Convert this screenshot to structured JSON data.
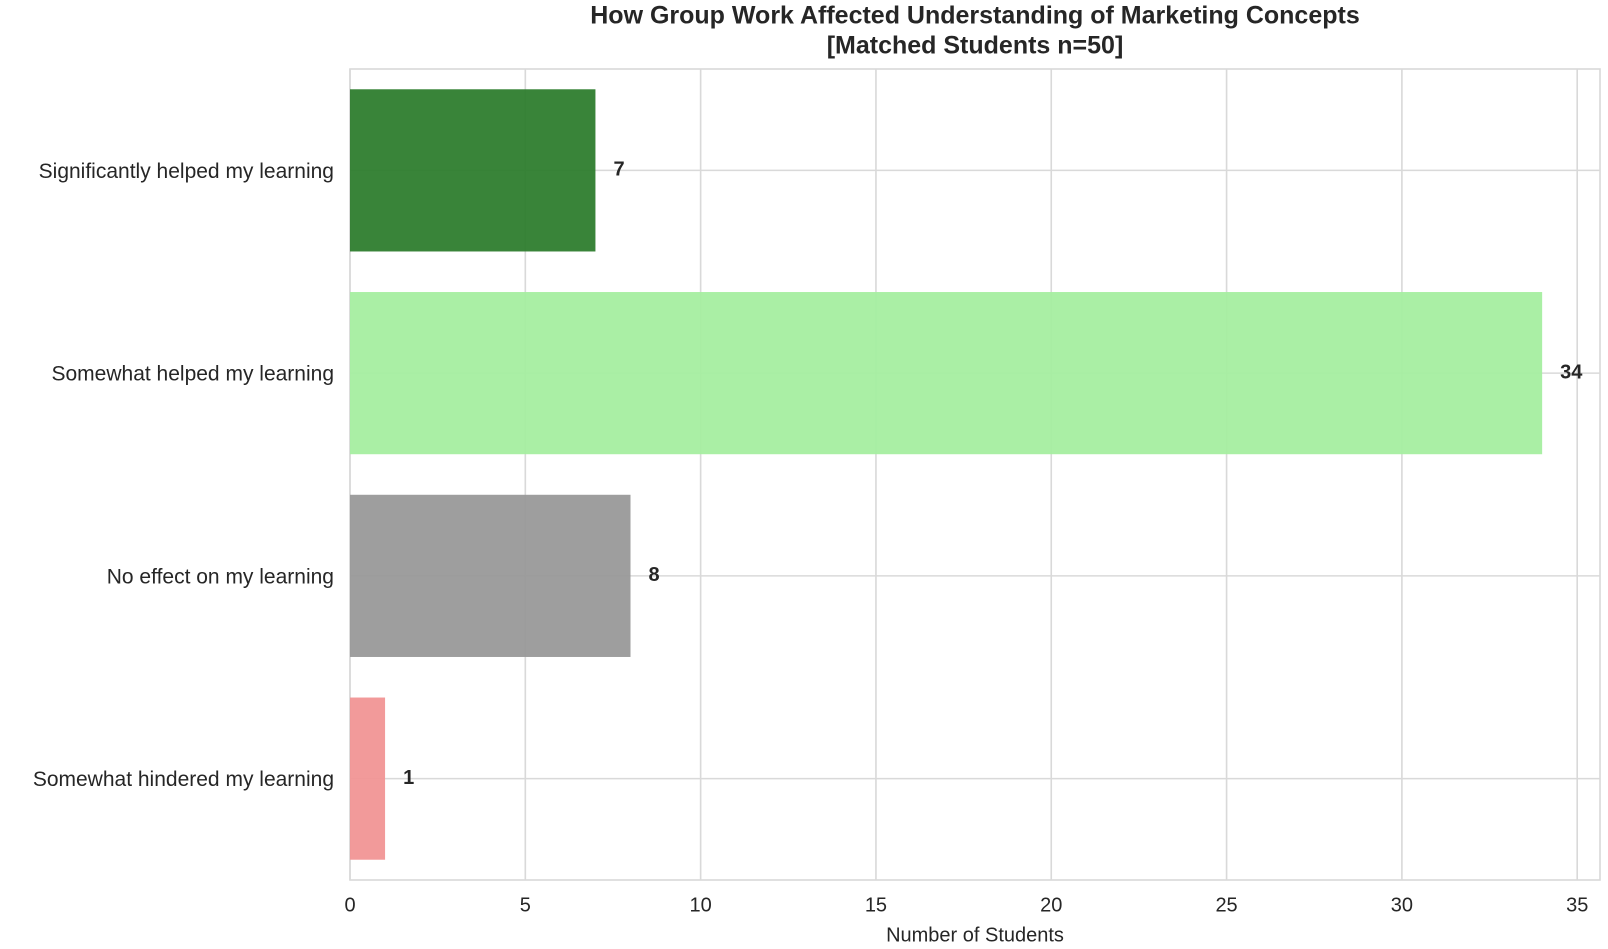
{
  "chart_data": {
    "type": "barh",
    "title": "How Group Work Affected Understanding of Marketing Concepts",
    "subtitle": "[Matched Students n=50]",
    "x_label": "Number of Students",
    "categories": [
      "Significantly helped my learning",
      "Somewhat helped my learning",
      "No effect on my learning",
      "Somewhat hindered my learning"
    ],
    "values": [
      7,
      34,
      8,
      1
    ],
    "colors": [
      "#2e7d2e",
      "#a5eea0",
      "#999999",
      "#f19595"
    ],
    "xlim": [
      0,
      35.65
    ],
    "xticks": [
      0,
      5,
      10,
      15,
      20,
      25,
      30,
      35
    ],
    "grid": true
  }
}
